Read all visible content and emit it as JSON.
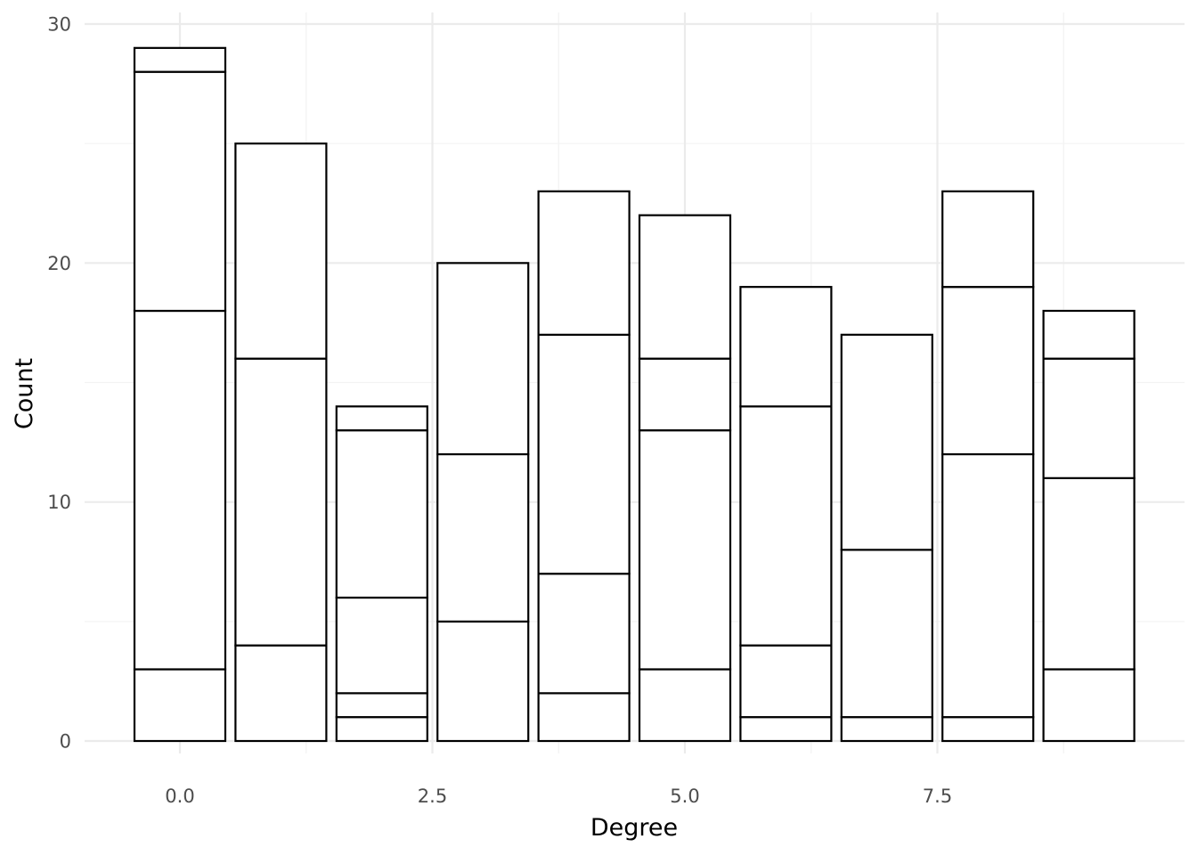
{
  "chart_data": {
    "type": "bar",
    "stacked": true,
    "title": "",
    "xlabel": "Degree",
    "ylabel": "Count",
    "xlim": [
      -0.5,
      9.5
    ],
    "ylim": [
      0,
      30
    ],
    "x_ticks": [
      0.0,
      2.5,
      5.0,
      7.5
    ],
    "x_tick_labels": [
      "0.0",
      "2.5",
      "5.0",
      "7.5"
    ],
    "y_ticks": [
      0,
      10,
      20,
      30
    ],
    "y_tick_labels": [
      "0",
      "10",
      "20",
      "30"
    ],
    "grid": true,
    "legend": "none",
    "bar_fill": "#ffffff",
    "bar_outline": "#000000",
    "categories": [
      0,
      1,
      2,
      3,
      4,
      5,
      6,
      7,
      8,
      9
    ],
    "stack_boundaries": [
      [
        3,
        18,
        28,
        29
      ],
      [
        4,
        16,
        25
      ],
      [
        1,
        2,
        6,
        13,
        14
      ],
      [
        5,
        12,
        20
      ],
      [
        2,
        7,
        17,
        23
      ],
      [
        3,
        13,
        16,
        22
      ],
      [
        1,
        4,
        14,
        19
      ],
      [
        1,
        8,
        17
      ],
      [
        1,
        12,
        19,
        23
      ],
      [
        3,
        11,
        16,
        18
      ]
    ],
    "totals": [
      29,
      25,
      14,
      20,
      23,
      22,
      19,
      17,
      23,
      18
    ]
  }
}
